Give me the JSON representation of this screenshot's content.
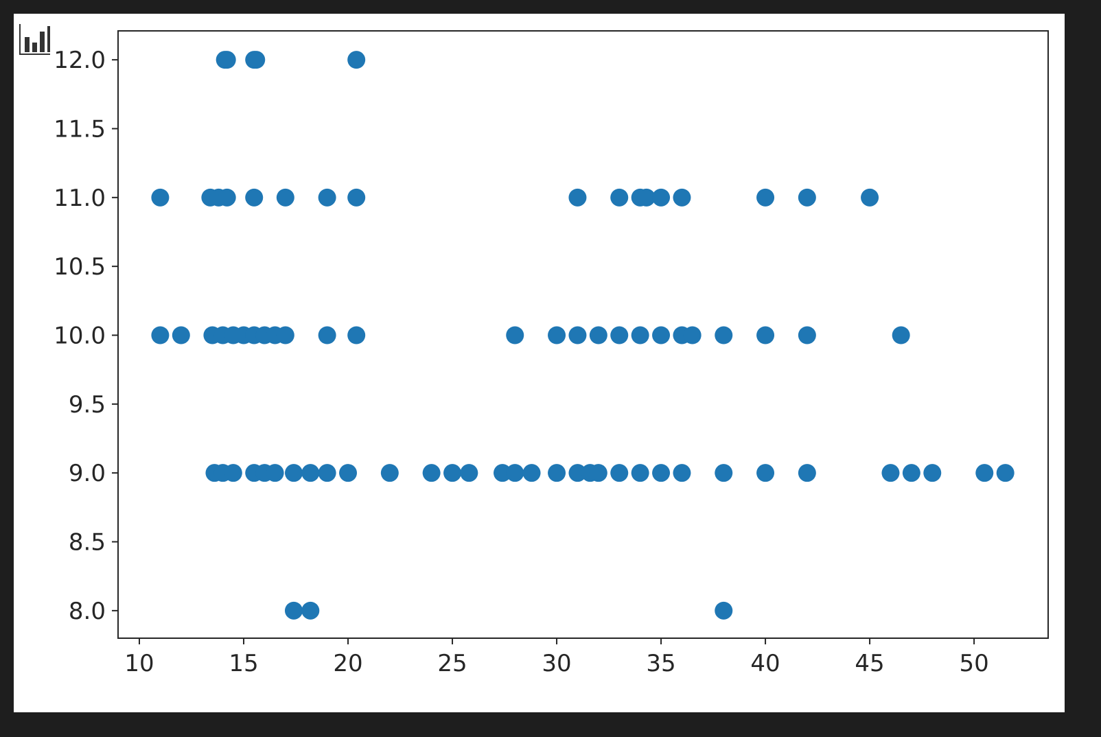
{
  "chart_data": {
    "type": "scatter",
    "title": "",
    "xlabel": "",
    "ylabel": "",
    "xlim": [
      8.98,
      53.55
    ],
    "ylim": [
      7.8,
      12.21
    ],
    "xticks": [
      "10",
      "15",
      "20",
      "25",
      "30",
      "35",
      "40",
      "45",
      "50"
    ],
    "yticks": [
      "8.0",
      "8.5",
      "9.0",
      "9.5",
      "10.0",
      "10.5",
      "11.0",
      "11.5",
      "12.0"
    ],
    "grid": false,
    "marker_color": "#1f77b4",
    "points": [
      [
        14.1,
        12
      ],
      [
        14.2,
        12
      ],
      [
        15.5,
        12
      ],
      [
        15.6,
        12
      ],
      [
        20.4,
        12
      ],
      [
        11.0,
        11
      ],
      [
        13.4,
        11
      ],
      [
        13.8,
        11
      ],
      [
        14.2,
        11
      ],
      [
        15.5,
        11
      ],
      [
        17.0,
        11
      ],
      [
        19.0,
        11
      ],
      [
        20.4,
        11
      ],
      [
        31.0,
        11
      ],
      [
        33.0,
        11
      ],
      [
        34.0,
        11
      ],
      [
        34.3,
        11
      ],
      [
        35.0,
        11
      ],
      [
        36.0,
        11
      ],
      [
        40.0,
        11
      ],
      [
        42.0,
        11
      ],
      [
        45.0,
        11
      ],
      [
        11.0,
        10
      ],
      [
        12.0,
        10
      ],
      [
        13.5,
        10
      ],
      [
        14.0,
        10
      ],
      [
        14.5,
        10
      ],
      [
        15.0,
        10
      ],
      [
        15.5,
        10
      ],
      [
        16.0,
        10
      ],
      [
        16.5,
        10
      ],
      [
        17.0,
        10
      ],
      [
        19.0,
        10
      ],
      [
        20.4,
        10
      ],
      [
        28.0,
        10
      ],
      [
        30.0,
        10
      ],
      [
        31.0,
        10
      ],
      [
        32.0,
        10
      ],
      [
        33.0,
        10
      ],
      [
        34.0,
        10
      ],
      [
        35.0,
        10
      ],
      [
        36.0,
        10
      ],
      [
        36.5,
        10
      ],
      [
        38.0,
        10
      ],
      [
        40.0,
        10
      ],
      [
        42.0,
        10
      ],
      [
        46.5,
        10
      ],
      [
        13.6,
        9
      ],
      [
        14.0,
        9
      ],
      [
        14.5,
        9
      ],
      [
        15.5,
        9
      ],
      [
        16.0,
        9
      ],
      [
        16.5,
        9
      ],
      [
        17.4,
        9
      ],
      [
        18.2,
        9
      ],
      [
        19.0,
        9
      ],
      [
        20.0,
        9
      ],
      [
        22.0,
        9
      ],
      [
        24.0,
        9
      ],
      [
        25.0,
        9
      ],
      [
        25.8,
        9
      ],
      [
        27.4,
        9
      ],
      [
        28.0,
        9
      ],
      [
        28.8,
        9
      ],
      [
        30.0,
        9
      ],
      [
        31.0,
        9
      ],
      [
        31.6,
        9
      ],
      [
        32.0,
        9
      ],
      [
        33.0,
        9
      ],
      [
        34.0,
        9
      ],
      [
        35.0,
        9
      ],
      [
        36.0,
        9
      ],
      [
        38.0,
        9
      ],
      [
        40.0,
        9
      ],
      [
        42.0,
        9
      ],
      [
        46.0,
        9
      ],
      [
        47.0,
        9
      ],
      [
        48.0,
        9
      ],
      [
        50.5,
        9
      ],
      [
        51.5,
        9
      ],
      [
        17.4,
        8
      ],
      [
        18.2,
        8
      ],
      [
        38.0,
        8
      ]
    ]
  },
  "toolbar": {
    "icon": "bar-chart-icon"
  }
}
